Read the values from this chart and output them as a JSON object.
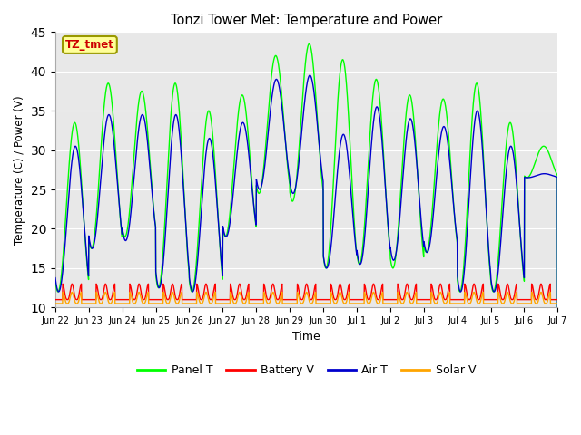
{
  "title": "Tonzi Tower Met: Temperature and Power",
  "xlabel": "Time",
  "ylabel": "Temperature (C) / Power (V)",
  "ylim": [
    10,
    45
  ],
  "yticks": [
    10,
    15,
    20,
    25,
    30,
    35,
    40,
    45
  ],
  "legend_labels": [
    "Panel T",
    "Battery V",
    "Air T",
    "Solar V"
  ],
  "legend_colors": [
    "#00ff00",
    "#ff0000",
    "#0000cd",
    "#ffa500"
  ],
  "annotation_text": "TZ_tmet",
  "annotation_color": "#cc0000",
  "annotation_bg": "#ffff99",
  "annotation_border": "#999900",
  "background_color": "#e8e8e8",
  "grid_color": "#ffffff",
  "n_days": 15,
  "panel_T_peaks": [
    33.5,
    38.5,
    37.5,
    38.5,
    35.0,
    37.0,
    42.0,
    43.5,
    41.5,
    39.0,
    37.0,
    36.5,
    38.5,
    33.5,
    30.5
  ],
  "panel_T_troughs": [
    12.0,
    17.5,
    19.0,
    12.5,
    12.0,
    19.0,
    24.5,
    23.5,
    15.0,
    15.5,
    15.0,
    17.0,
    12.0,
    12.0,
    26.5
  ],
  "air_T_peaks": [
    30.5,
    34.5,
    34.5,
    34.5,
    31.5,
    33.5,
    39.0,
    39.5,
    32.0,
    35.5,
    34.0,
    33.0,
    35.0,
    30.5,
    27.0
  ],
  "air_T_troughs": [
    12.0,
    17.5,
    18.5,
    12.5,
    12.0,
    19.0,
    25.0,
    24.5,
    15.0,
    15.5,
    16.0,
    17.0,
    12.0,
    12.0,
    26.5
  ],
  "battery_V_base": 11.0,
  "battery_V_peak": 13.0,
  "solar_V_base": 10.5,
  "solar_V_peak": 12.2,
  "pts_per_day": 144,
  "tick_labels": [
    "Jun 22",
    "Jun 23",
    "Jun 24",
    "Jun 25",
    "Jun 26",
    "Jun 27",
    "Jun 28",
    "Jun 29",
    "Jun 30",
    "Jul 1",
    "Jul 2",
    "Jul 3",
    "Jul 4",
    "Jul 5",
    "Jul 6",
    "Jul 7"
  ],
  "figsize": [
    6.4,
    4.8
  ],
  "dpi": 100
}
